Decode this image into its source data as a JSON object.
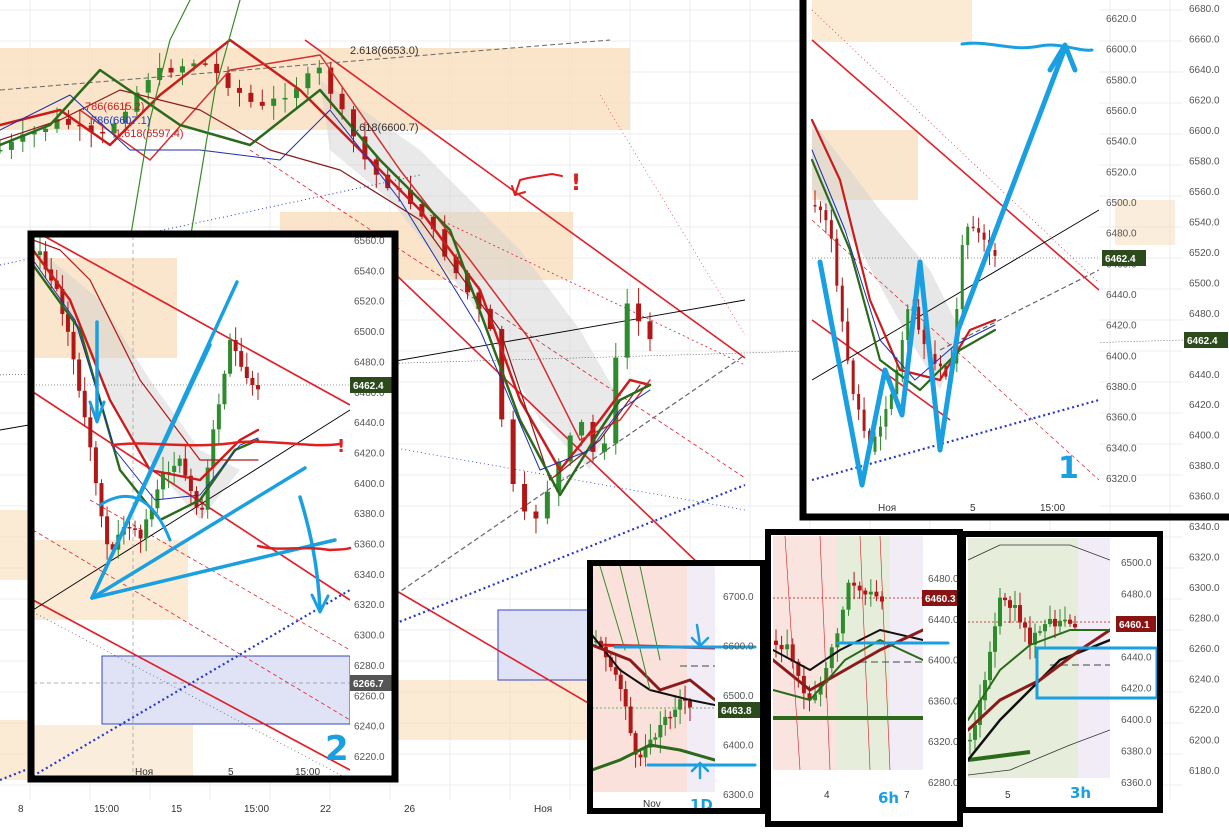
{
  "colors": {
    "bg": "#ffffff",
    "zone": "#f8dcb8",
    "zoneLight": "#fbe9d4",
    "box": "#dde0f5",
    "boxStroke": "#3848b8",
    "channel": "#e0202a",
    "blueLine": "#2838c8",
    "cyan": "#1aa0e0",
    "frame": "#000000",
    "candleUp": "#2e8b2e",
    "candleDown": "#b01818",
    "shade": "#cfcfcf",
    "priceTag": "#2c4a1c",
    "priceTagRed": "#8a1414",
    "axisText": "#555555",
    "grid": "#ececec"
  },
  "chart_data": [
    {
      "type": "line",
      "name": "main",
      "x_ticks": [
        "8",
        "15:00",
        "15",
        "15:00",
        "22",
        "26",
        "Ноя"
      ],
      "y_ticks": [
        "6680.0",
        "6660.0",
        "6640.0",
        "6620.0",
        "6600.0",
        "6580.0",
        "6560.0",
        "6540.0",
        "6520.0",
        "6500.0",
        "6480.0",
        "6460.0",
        "6440.0",
        "6420.0",
        "6400.0",
        "6380.0",
        "6360.0",
        "6340.0",
        "6320.0",
        "6300.0",
        "6280.0",
        "6260.0",
        "6240.0",
        "6220.0",
        "6200.0",
        "6180.0"
      ],
      "fib_labels": [
        {
          "text": "2.618(6653.0)",
          "color": "#333333"
        },
        {
          "text": ".786(6615.2)",
          "color": "#d02020"
        },
        {
          "text": ".786(6607.1)",
          "color": "#2040c0"
        },
        {
          "text": "1.618(6597.4)",
          "color": "#d02020"
        },
        {
          "text": "1.618(6600.7)",
          "color": "#333333"
        }
      ],
      "price_tag": "6462.4",
      "annotation": "!"
    },
    {
      "type": "line",
      "name": "panel-1",
      "x_ticks": [
        "Ноя",
        "5",
        "15:00"
      ],
      "y_ticks": [
        "6620.0",
        "6600.0",
        "6580.0",
        "6560.0",
        "6540.0",
        "6520.0",
        "6500.0",
        "6480.0",
        "6460.0",
        "6440.0",
        "6420.0",
        "6400.0",
        "6380.0",
        "6360.0",
        "6340.0",
        "6320.0"
      ],
      "price_tag": "6462.4",
      "label": "1"
    },
    {
      "type": "line",
      "name": "panel-2",
      "x_ticks": [
        "Ноя",
        "5",
        "15:00"
      ],
      "y_ticks": [
        "6560.0",
        "6540.0",
        "6520.0",
        "6500.0",
        "6480.0",
        "6460.0",
        "6440.0",
        "6420.0",
        "6400.0",
        "6380.0",
        "6360.0",
        "6340.0",
        "6320.0",
        "6300.0",
        "6280.0",
        "6260.0",
        "6240.0",
        "6220.0"
      ],
      "price_tag": "6462.4",
      "cursor_tag": "6266.7",
      "label": "2"
    },
    {
      "type": "line",
      "name": "panel-1D",
      "x_ticks": [
        "Nov"
      ],
      "y_ticks": [
        "6700.0",
        "6600.0",
        "6500.0",
        "6400.0",
        "6300.0"
      ],
      "price_tag": "6463.8",
      "label": "1D"
    },
    {
      "type": "line",
      "name": "panel-6h",
      "x_ticks": [
        "4",
        "7"
      ],
      "y_ticks": [
        "6480.0",
        "6440.0",
        "6400.0",
        "6360.0",
        "6320.0",
        "6280.0"
      ],
      "price_tag": "6460.3",
      "label": "6h"
    },
    {
      "type": "line",
      "name": "panel-3h",
      "x_ticks": [
        "5"
      ],
      "y_ticks": [
        "6500.0",
        "6480.0",
        "6460.0",
        "6440.0",
        "6420.0",
        "6400.0",
        "6380.0",
        "6360.0"
      ],
      "price_tag": "6460.1",
      "label": "3h"
    }
  ]
}
